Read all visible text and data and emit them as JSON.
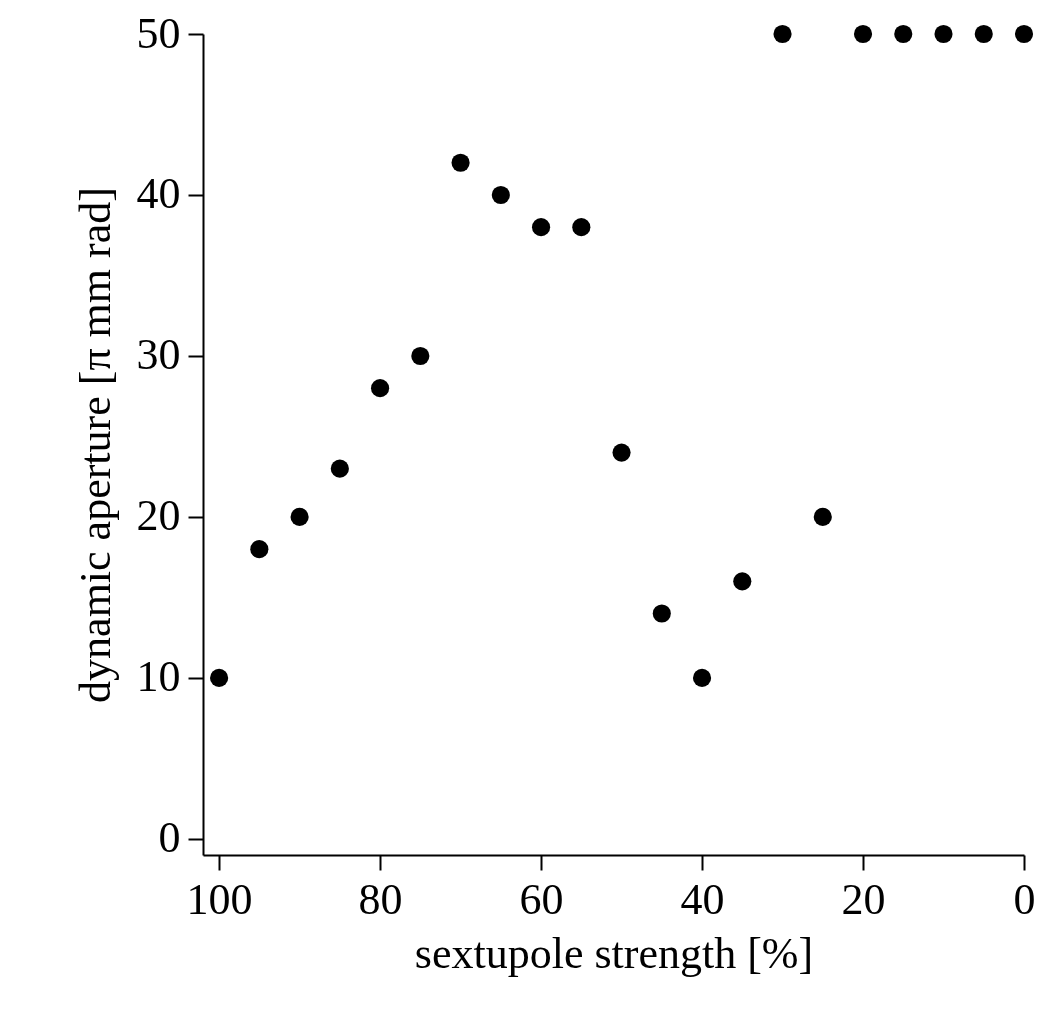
{
  "chart_data": {
    "type": "scatter",
    "xlabel": "sextupole strength [%]",
    "ylabel": "dynamic aperture [π mm rad]",
    "x": [
      100,
      95,
      90,
      85,
      80,
      75,
      70,
      65,
      60,
      55,
      50,
      45,
      40,
      35,
      30,
      25,
      20,
      15,
      10,
      5,
      0
    ],
    "series": [
      {
        "color": "#000000",
        "values": [
          10,
          18,
          20,
          23,
          28,
          30,
          42,
          40,
          38,
          38,
          24,
          14,
          10,
          16,
          50,
          20,
          50,
          50,
          50,
          50,
          50
        ]
      }
    ],
    "xlim": [
      102,
      0
    ],
    "xticks": [
      100,
      80,
      60,
      40,
      20,
      0
    ],
    "ylim": [
      -1,
      50
    ],
    "yticks": [
      0,
      10,
      20,
      30,
      40,
      50
    ],
    "marker": "circle"
  }
}
